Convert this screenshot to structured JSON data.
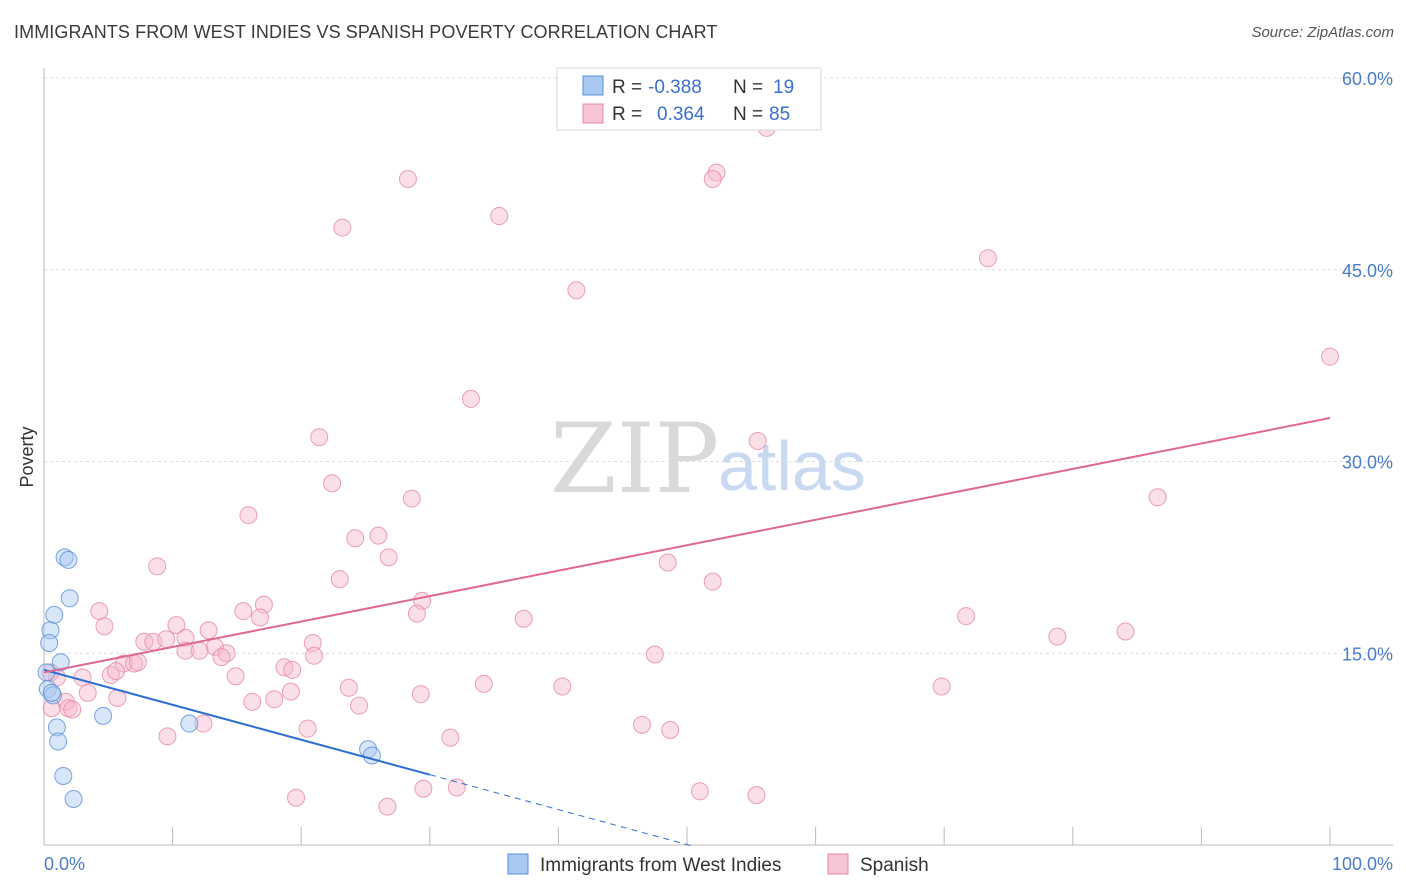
{
  "title": "IMMIGRANTS FROM WEST INDIES VS SPANISH POVERTY CORRELATION CHART",
  "source": "Source: ZipAtlas.com",
  "watermark": {
    "zip": "ZIP",
    "atlas": "atlas"
  },
  "colors": {
    "blue_fill": "#a9c8f2",
    "blue_stroke": "#5a8fd8",
    "blue_line": "#2e6fd1",
    "pink_fill": "#f6b8cc",
    "pink_stroke": "#e68aa8",
    "pink_line": "#e06892",
    "grid": "#dddddd",
    "tick_text": "#4a7cc9"
  },
  "legend": {
    "rows": [
      {
        "r_label": "R =",
        "r_value": "-0.388",
        "n_label": "N =",
        "n_value": "19"
      },
      {
        "r_label": "R =",
        "r_value": "0.364",
        "n_label": "N =",
        "n_value": "85"
      }
    ]
  },
  "bottom_legend": [
    "Immigrants from West Indies",
    "Spanish"
  ],
  "chart_data": {
    "type": "scatter",
    "title": "IMMIGRANTS FROM WEST INDIES VS SPANISH POVERTY CORRELATION CHART",
    "xlabel": "",
    "ylabel": "Poverty",
    "xlim": [
      0,
      100
    ],
    "ylim": [
      0,
      60
    ],
    "x_tick_labels": [
      "0.0%",
      "100.0%"
    ],
    "y_ticks": [
      15,
      30,
      45,
      60
    ],
    "y_tick_labels": [
      "15.0%",
      "30.0%",
      "45.0%",
      "60.0%"
    ],
    "grid": true,
    "legend_position": "top-center",
    "series": [
      {
        "name": "Immigrants from West Indies",
        "color": "blue",
        "R": -0.388,
        "N": 19,
        "trend": {
          "x0": 0,
          "y0": 13.7,
          "x1": 30,
          "y1": 5.5,
          "dash_to_x": 50.5
        },
        "points": [
          [
            1.6,
            22.5
          ],
          [
            1.9,
            22.3
          ],
          [
            2.0,
            19.3
          ],
          [
            0.8,
            18.0
          ],
          [
            0.5,
            16.8
          ],
          [
            0.4,
            15.8
          ],
          [
            1.3,
            14.3
          ],
          [
            0.2,
            13.5
          ],
          [
            0.3,
            12.2
          ],
          [
            0.7,
            11.7
          ],
          [
            0.6,
            11.9
          ],
          [
            4.6,
            10.1
          ],
          [
            1.0,
            9.2
          ],
          [
            11.3,
            9.5
          ],
          [
            1.1,
            8.1
          ],
          [
            25.2,
            7.5
          ],
          [
            25.5,
            7.0
          ],
          [
            1.5,
            5.4
          ],
          [
            2.3,
            3.6
          ]
        ]
      },
      {
        "name": "Spanish",
        "color": "pink",
        "R": 0.364,
        "N": 85,
        "trend": {
          "x0": 0,
          "y0": 13.5,
          "x1": 100,
          "y1": 33.4
        },
        "points": [
          [
            56.2,
            56.1
          ],
          [
            52.3,
            52.6
          ],
          [
            52.0,
            52.1
          ],
          [
            28.3,
            52.1
          ],
          [
            35.4,
            49.2
          ],
          [
            23.2,
            48.3
          ],
          [
            73.4,
            45.9
          ],
          [
            41.4,
            43.4
          ],
          [
            100.0,
            38.2
          ],
          [
            33.2,
            34.9
          ],
          [
            21.4,
            31.9
          ],
          [
            55.5,
            31.6
          ],
          [
            22.4,
            28.3
          ],
          [
            28.6,
            27.1
          ],
          [
            86.6,
            27.2
          ],
          [
            15.9,
            25.8
          ],
          [
            24.2,
            24.0
          ],
          [
            26.0,
            24.2
          ],
          [
            26.8,
            22.5
          ],
          [
            48.5,
            22.1
          ],
          [
            8.8,
            21.8
          ],
          [
            23.0,
            20.8
          ],
          [
            52.0,
            20.6
          ],
          [
            17.1,
            18.8
          ],
          [
            29.4,
            19.1
          ],
          [
            4.3,
            18.3
          ],
          [
            15.5,
            18.3
          ],
          [
            16.8,
            17.8
          ],
          [
            29.0,
            18.1
          ],
          [
            37.3,
            17.7
          ],
          [
            71.7,
            17.9
          ],
          [
            4.7,
            17.1
          ],
          [
            10.3,
            17.2
          ],
          [
            12.8,
            16.8
          ],
          [
            78.8,
            16.3
          ],
          [
            84.1,
            16.7
          ],
          [
            7.8,
            15.9
          ],
          [
            8.5,
            15.9
          ],
          [
            9.5,
            16.1
          ],
          [
            11.0,
            16.2
          ],
          [
            20.9,
            15.8
          ],
          [
            11.0,
            15.2
          ],
          [
            12.1,
            15.2
          ],
          [
            13.3,
            15.5
          ],
          [
            14.2,
            15.0
          ],
          [
            13.8,
            14.7
          ],
          [
            21.0,
            14.8
          ],
          [
            47.5,
            14.9
          ],
          [
            6.2,
            14.2
          ],
          [
            7.0,
            14.2
          ],
          [
            7.3,
            14.3
          ],
          [
            18.7,
            13.9
          ],
          [
            19.3,
            13.7
          ],
          [
            5.2,
            13.3
          ],
          [
            14.9,
            13.2
          ],
          [
            3.0,
            13.1
          ],
          [
            5.6,
            13.6
          ],
          [
            1.0,
            13.1
          ],
          [
            0.5,
            13.5
          ],
          [
            23.7,
            12.3
          ],
          [
            34.2,
            12.6
          ],
          [
            40.3,
            12.4
          ],
          [
            69.8,
            12.4
          ],
          [
            3.4,
            11.9
          ],
          [
            5.7,
            11.5
          ],
          [
            16.2,
            11.2
          ],
          [
            17.9,
            11.4
          ],
          [
            19.2,
            12.0
          ],
          [
            29.3,
            11.8
          ],
          [
            1.7,
            11.2
          ],
          [
            0.6,
            10.7
          ],
          [
            1.9,
            10.7
          ],
          [
            2.2,
            10.6
          ],
          [
            24.5,
            10.9
          ],
          [
            12.4,
            9.5
          ],
          [
            20.5,
            9.1
          ],
          [
            46.5,
            9.4
          ],
          [
            48.7,
            9.0
          ],
          [
            9.6,
            8.5
          ],
          [
            31.6,
            8.4
          ],
          [
            29.5,
            4.4
          ],
          [
            32.1,
            4.5
          ],
          [
            51.0,
            4.2
          ],
          [
            55.4,
            3.9
          ],
          [
            19.6,
            3.7
          ],
          [
            26.7,
            3.0
          ]
        ]
      }
    ]
  }
}
